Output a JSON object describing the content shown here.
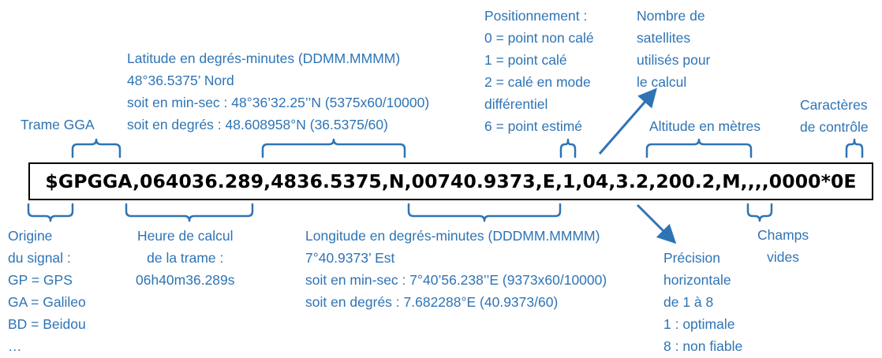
{
  "frame": "$GPGGA,064036.289,4836.5375,N,00740.9373,E,1,04,3.2,200.2,M,,,,0000*0E",
  "colors": {
    "annotation": "#2e74b5",
    "frame_text": "#000000"
  },
  "annotations": {
    "trame": [
      "Trame GGA"
    ],
    "latitude": [
      "Latitude en degrés-minutes (DDMM.MMMM)",
      "48°36.5375’ Nord",
      "soit en min-sec : 48°36’32.25’’N (5375x60/10000)",
      "soit en degrés : 48.608958°N (36.5375/60)"
    ],
    "positionnement": [
      "Positionnement :",
      "0 = point non calé",
      "1 = point calé",
      "2 = calé en mode",
      "différentiel",
      "6 = point estimé"
    ],
    "satellites": [
      "Nombre de",
      "satellites",
      "utilisés pour",
      "le calcul"
    ],
    "altitude": [
      "Altitude en mètres"
    ],
    "controle": [
      "Caractères",
      "de contrôle"
    ],
    "origine": [
      "Origine",
      "du signal :",
      "GP = GPS",
      "GA = Galileo",
      "BD = Beidou",
      "…"
    ],
    "heure": [
      "Heure de calcul",
      "de la trame :",
      "06h40m36.289s"
    ],
    "longitude": [
      "Longitude en degrés-minutes (DDDMM.MMMM)",
      "7°40.9373’ Est",
      "soit en min-sec : 7°40’56.238’’E (9373x60/10000)",
      "soit en degrés : 7.682288°E (40.9373/60)"
    ],
    "champs": [
      "Champs",
      "vides"
    ],
    "precision": [
      "Précision",
      "horizontale",
      "de 1 à 8",
      "1 : optimale",
      "8 : non fiable"
    ]
  }
}
